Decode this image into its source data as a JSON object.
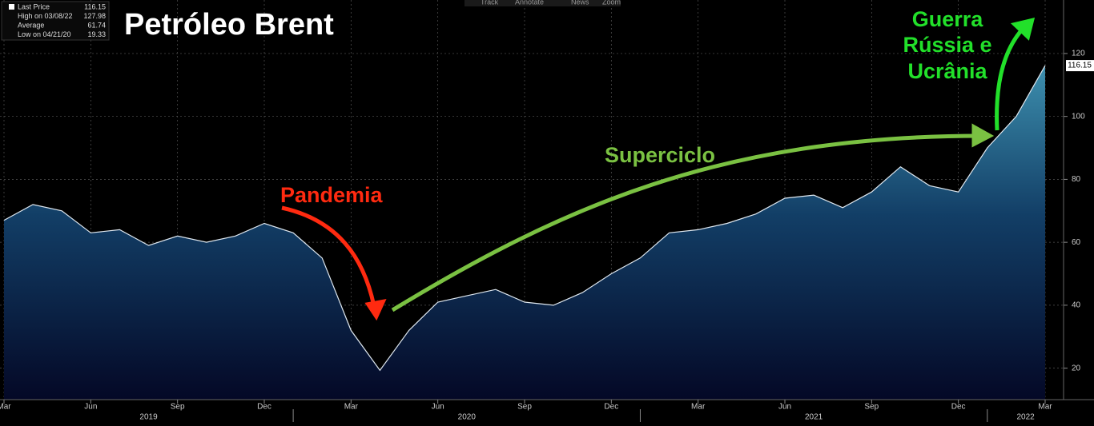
{
  "chart_data": {
    "type": "area",
    "title": "Petróleo Brent",
    "toolbar": [
      "Track",
      "Annotate",
      "News",
      "Zoom"
    ],
    "legend_box": [
      {
        "label": "Last Price",
        "value": 116.15
      },
      {
        "label": "High on 03/08/22",
        "value": 127.98
      },
      {
        "label": "Average",
        "value": 61.74
      },
      {
        "label": "Low on 04/21/20",
        "value": 19.33
      }
    ],
    "annotations": [
      {
        "text": "Pandemia",
        "color": "#ff2a10"
      },
      {
        "text": "Superciclo",
        "color": "#7ac142"
      },
      {
        "text": "Guerra",
        "color": "#22e02a"
      },
      {
        "text": "Rússia e",
        "color": "#22e02a"
      },
      {
        "text": "Ucrânia",
        "color": "#22e02a"
      }
    ],
    "x": [
      "2019-03",
      "2019-04",
      "2019-05",
      "2019-06",
      "2019-07",
      "2019-08",
      "2019-09",
      "2019-10",
      "2019-11",
      "2019-12",
      "2020-01",
      "2020-02",
      "2020-03",
      "2020-04",
      "2020-05",
      "2020-06",
      "2020-07",
      "2020-08",
      "2020-09",
      "2020-10",
      "2020-11",
      "2020-12",
      "2021-01",
      "2021-02",
      "2021-03",
      "2021-04",
      "2021-05",
      "2021-06",
      "2021-07",
      "2021-08",
      "2021-09",
      "2021-10",
      "2021-11",
      "2021-12",
      "2022-01",
      "2022-02",
      "2022-03"
    ],
    "values": [
      67,
      72,
      70,
      63,
      64,
      59,
      62,
      60,
      62,
      66,
      63,
      55,
      32,
      19.33,
      32,
      41,
      43,
      45,
      41,
      40,
      44,
      50,
      55,
      63,
      64,
      66,
      69,
      74,
      75,
      71,
      76,
      84,
      78,
      76,
      90,
      100,
      116.15
    ],
    "color": "#dfe8f0",
    "xlim": [
      "2019-03",
      "2022-03"
    ],
    "xticks": [
      {
        "value": "2019-03",
        "label": "Mar"
      },
      {
        "value": "2019-06",
        "label": "Jun"
      },
      {
        "value": "2019-09",
        "label": "Sep"
      },
      {
        "value": "2019-12",
        "label": "Dec"
      },
      {
        "value": "2020-03",
        "label": "Mar"
      },
      {
        "value": "2020-06",
        "label": "Jun"
      },
      {
        "value": "2020-09",
        "label": "Sep"
      },
      {
        "value": "2020-12",
        "label": "Dec"
      },
      {
        "value": "2021-03",
        "label": "Mar"
      },
      {
        "value": "2021-06",
        "label": "Jun"
      },
      {
        "value": "2021-09",
        "label": "Sep"
      },
      {
        "value": "2021-12",
        "label": "Dec"
      },
      {
        "value": "2022-03",
        "label": "Mar"
      }
    ],
    "years": [
      2019,
      2020,
      2021,
      2022
    ],
    "ylim": [
      10,
      137
    ],
    "yticks": [
      20,
      40,
      60,
      80,
      100,
      120
    ],
    "grid": true
  }
}
